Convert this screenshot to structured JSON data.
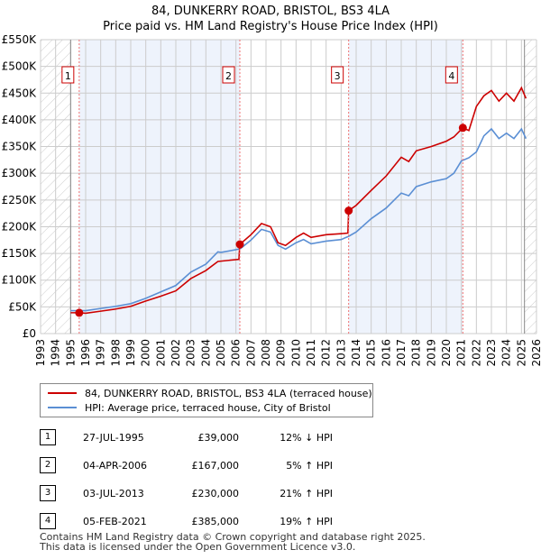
{
  "title": "84, DUNKERRY ROAD, BRISTOL, BS3 4LA",
  "subtitle": "Price paid vs. HM Land Registry's House Price Index (HPI)",
  "chart_data": {
    "type": "line",
    "title": "84, DUNKERRY ROAD, BRISTOL, BS3 4LA",
    "xlim": [
      1993,
      2026
    ],
    "ylim": [
      0,
      550000
    ],
    "x_ticks": [
      "1993",
      "1994",
      "1995",
      "1996",
      "1997",
      "1998",
      "1999",
      "2000",
      "2001",
      "2002",
      "2003",
      "2004",
      "2005",
      "2006",
      "2007",
      "2008",
      "2009",
      "2010",
      "2011",
      "2012",
      "2013",
      "2014",
      "2015",
      "2016",
      "2017",
      "2018",
      "2019",
      "2020",
      "2021",
      "2022",
      "2023",
      "2024",
      "2025",
      "2026"
    ],
    "y_ticks": [
      {
        "v": 0,
        "label": "£0"
      },
      {
        "v": 50000,
        "label": "£50K"
      },
      {
        "v": 100000,
        "label": "£100K"
      },
      {
        "v": 150000,
        "label": "£150K"
      },
      {
        "v": 200000,
        "label": "£200K"
      },
      {
        "v": 250000,
        "label": "£250K"
      },
      {
        "v": 300000,
        "label": "£300K"
      },
      {
        "v": 350000,
        "label": "£350K"
      },
      {
        "v": 400000,
        "label": "£400K"
      },
      {
        "v": 450000,
        "label": "£450K"
      },
      {
        "v": 500000,
        "label": "£500K"
      },
      {
        "v": 550000,
        "label": "£550K"
      }
    ],
    "series": [
      {
        "name": "84, DUNKERRY ROAD, BRISTOL, BS3 4LA (terraced house)",
        "color": "#cc0000",
        "x": [
          1995.0,
          1995.57,
          1996,
          1997,
          1998,
          1999,
          2000,
          2001,
          2002,
          2003,
          2004,
          2004.8,
          2006.2,
          2006.26,
          2007,
          2007.7,
          2008.3,
          2008.8,
          2009.3,
          2010,
          2010.5,
          2011,
          2012,
          2013,
          2013.45,
          2013.5,
          2014,
          2015,
          2016,
          2017,
          2017.5,
          2018,
          2019,
          2020,
          2020.5,
          2021.1,
          2021.5,
          2022,
          2022.5,
          2023,
          2023.5,
          2024,
          2024.5,
          2025,
          2025.3
        ],
        "y": [
          39000,
          39000,
          38000,
          42000,
          46000,
          51000,
          61000,
          70000,
          80000,
          103000,
          118000,
          135000,
          139000,
          167000,
          185000,
          206000,
          200000,
          170000,
          165000,
          180000,
          188000,
          180000,
          185000,
          187000,
          188000,
          230000,
          240000,
          268000,
          295000,
          330000,
          322000,
          342000,
          350000,
          360000,
          368000,
          385000,
          380000,
          425000,
          445000,
          455000,
          435000,
          450000,
          435000,
          460000,
          440000
        ]
      },
      {
        "name": "HPI: Average price, terraced house, City of Bristol",
        "color": "#5b8fd4",
        "x": [
          1995.0,
          1996,
          1997,
          1998,
          1999,
          2000,
          2001,
          2002,
          2003,
          2004,
          2004.8,
          2005,
          2006,
          2006.3,
          2007,
          2007.7,
          2008.3,
          2008.8,
          2009.3,
          2010,
          2010.5,
          2011,
          2012,
          2013,
          2013.5,
          2014,
          2015,
          2016,
          2017,
          2017.5,
          2018,
          2019,
          2020,
          2020.5,
          2021,
          2021.5,
          2022,
          2022.5,
          2023,
          2023.5,
          2024,
          2024.5,
          2025,
          2025.3
        ],
        "y": [
          43000,
          43000,
          47000,
          51000,
          56000,
          66000,
          78000,
          90000,
          115000,
          130000,
          153000,
          152000,
          157000,
          159000,
          175000,
          195000,
          190000,
          165000,
          158000,
          170000,
          176000,
          168000,
          173000,
          176000,
          182000,
          190000,
          215000,
          235000,
          263000,
          258000,
          275000,
          284000,
          290000,
          300000,
          323000,
          329000,
          340000,
          370000,
          383000,
          365000,
          375000,
          365000,
          383000,
          365000
        ]
      }
    ],
    "sales": [
      {
        "id": "1",
        "x": 1995.57,
        "y": 39000
      },
      {
        "id": "2",
        "x": 2006.26,
        "y": 167000
      },
      {
        "id": "3",
        "x": 2013.5,
        "y": 230000
      },
      {
        "id": "4",
        "x": 2021.1,
        "y": 385000
      }
    ],
    "shaded_ranges": [
      [
        1995.57,
        2006.26
      ],
      [
        2013.5,
        2021.1
      ]
    ],
    "hatched_ranges": [
      [
        1993,
        1995
      ],
      [
        2025.2,
        2026
      ]
    ]
  },
  "legend": {
    "property": "84, DUNKERRY ROAD, BRISTOL, BS3 4LA (terraced house)",
    "hpi": "HPI: Average price, terraced house, City of Bristol"
  },
  "transactions": [
    {
      "num": "1",
      "date": "27-JUL-1995",
      "price": "£39,000",
      "hpi": "12% ↓ HPI"
    },
    {
      "num": "2",
      "date": "04-APR-2006",
      "price": "£167,000",
      "hpi": "5% ↑ HPI"
    },
    {
      "num": "3",
      "date": "03-JUL-2013",
      "price": "£230,000",
      "hpi": "21% ↑ HPI"
    },
    {
      "num": "4",
      "date": "05-FEB-2021",
      "price": "£385,000",
      "hpi": "19% ↑ HPI"
    }
  ],
  "footer": {
    "line1": "Contains HM Land Registry data © Crown copyright and database right 2025.",
    "line2": "This data is licensed under the Open Government Licence v3.0."
  }
}
